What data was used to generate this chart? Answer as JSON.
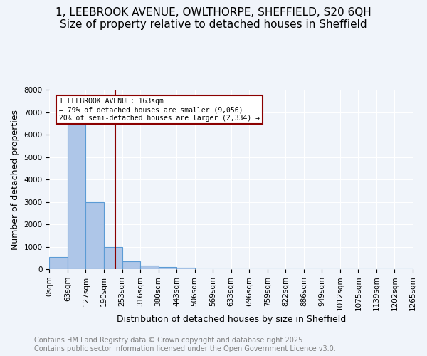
{
  "title_line1": "1, LEEBROOK AVENUE, OWLTHORPE, SHEFFIELD, S20 6QH",
  "title_line2": "Size of property relative to detached houses in Sheffield",
  "bar_values": [
    550,
    6450,
    2980,
    1000,
    360,
    160,
    100,
    55,
    0,
    0,
    0,
    0,
    0,
    0,
    0,
    0,
    0,
    0,
    0,
    0
  ],
  "bin_labels": [
    "0sqm",
    "63sqm",
    "127sqm",
    "190sqm",
    "253sqm",
    "316sqm",
    "380sqm",
    "443sqm",
    "506sqm",
    "569sqm",
    "633sqm",
    "696sqm",
    "759sqm",
    "822sqm",
    "886sqm",
    "949sqm",
    "1012sqm",
    "1075sqm",
    "1139sqm",
    "1202sqm"
  ],
  "all_xlabels": [
    "0sqm",
    "63sqm",
    "127sqm",
    "190sqm",
    "253sqm",
    "316sqm",
    "380sqm",
    "443sqm",
    "506sqm",
    "569sqm",
    "633sqm",
    "696sqm",
    "759sqm",
    "822sqm",
    "886sqm",
    "949sqm",
    "1012sqm",
    "1075sqm",
    "1139sqm",
    "1202sqm",
    "1265sqm"
  ],
  "bar_color": "#aec6e8",
  "bar_edge_color": "#5b9bd5",
  "ylabel": "Number of detached properties",
  "xlabel": "Distribution of detached houses by size in Sheffield",
  "ylim": [
    0,
    8000
  ],
  "yticks": [
    0,
    1000,
    2000,
    3000,
    4000,
    5000,
    6000,
    7000,
    8000
  ],
  "vline_x": 3.13,
  "vline_color": "#8b0000",
  "annotation_text": "1 LEEBROOK AVENUE: 163sqm\n← 79% of detached houses are smaller (9,056)\n20% of semi-detached houses are larger (2,334) →",
  "annotation_box_color": "#ffffff",
  "annotation_border_color": "#8b0000",
  "footer_line1": "Contains HM Land Registry data © Crown copyright and database right 2025.",
  "footer_line2": "Contains public sector information licensed under the Open Government Licence v3.0.",
  "background_color": "#f0f4fa",
  "grid_color": "#ffffff",
  "title_fontsize": 11,
  "axis_fontsize": 9,
  "tick_fontsize": 7.5,
  "footer_fontsize": 7
}
